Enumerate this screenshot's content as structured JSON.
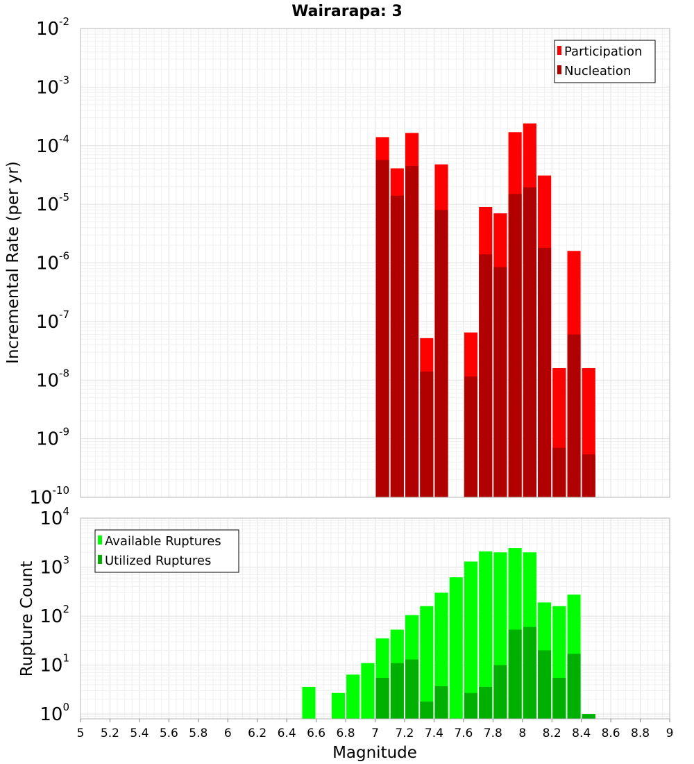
{
  "chart_data": [
    {
      "type": "bar",
      "title": "Wairarapa: 3",
      "xlabel": "",
      "ylabel": "Incremental Rate (per yr)",
      "yscale": "log",
      "xlim": [
        5,
        9
      ],
      "ylim": [
        1e-10,
        0.01
      ],
      "y_tick_labels": [
        {
          "base": "10",
          "exp": "-10"
        },
        {
          "base": "10",
          "exp": "-9"
        },
        {
          "base": "10",
          "exp": "-8"
        },
        {
          "base": "10",
          "exp": "-7"
        },
        {
          "base": "10",
          "exp": "-6"
        },
        {
          "base": "10",
          "exp": "-5"
        },
        {
          "base": "10",
          "exp": "-4"
        },
        {
          "base": "10",
          "exp": "-3"
        },
        {
          "base": "10",
          "exp": "-2"
        }
      ],
      "bar_width": 0.09,
      "grid": true,
      "legend_position": "top-right",
      "series": [
        {
          "name": "Participation",
          "color": "#ff0000",
          "x": [
            7.05,
            7.15,
            7.25,
            7.35,
            7.45,
            7.65,
            7.75,
            7.85,
            7.95,
            8.05,
            8.15,
            8.25,
            8.35,
            8.45
          ],
          "values": [
            0.00014,
            4.1e-05,
            0.000165,
            5.2e-08,
            4.8e-05,
            6.5e-08,
            9e-06,
            7e-06,
            0.00017,
            0.00024,
            3.1e-05,
            1.6e-08,
            1.6e-06,
            1.6e-08
          ]
        },
        {
          "name": "Nucleation",
          "color": "#b00000",
          "x": [
            7.05,
            7.15,
            7.25,
            7.35,
            7.45,
            7.65,
            7.75,
            7.85,
            7.95,
            8.05,
            8.15,
            8.25,
            8.35,
            8.45
          ],
          "values": [
            5.7e-05,
            1.4e-05,
            4.5e-05,
            1.4e-08,
            8e-06,
            1.15e-08,
            1.4e-06,
            8.5e-07,
            1.5e-05,
            1.95e-05,
            1.8e-06,
            7e-10,
            6e-08,
            5.4e-10
          ]
        }
      ]
    },
    {
      "type": "bar",
      "title": "",
      "xlabel": "Magnitude",
      "ylabel": "Rupture Count",
      "yscale": "log",
      "xlim": [
        5,
        9
      ],
      "ylim": [
        0.8,
        10000
      ],
      "x_tick_labels": [
        "5",
        "5.2",
        "5.4",
        "5.6",
        "5.8",
        "6",
        "6.2",
        "6.4",
        "6.6",
        "6.8",
        "7",
        "7.2",
        "7.4",
        "7.6",
        "7.8",
        "8",
        "8.2",
        "8.4",
        "8.6",
        "8.8",
        "9"
      ],
      "y_tick_labels": [
        {
          "base": "10",
          "exp": "0"
        },
        {
          "base": "10",
          "exp": "1"
        },
        {
          "base": "10",
          "exp": "2"
        },
        {
          "base": "10",
          "exp": "3"
        },
        {
          "base": "10",
          "exp": "4"
        }
      ],
      "bar_width": 0.09,
      "grid": true,
      "legend_position": "top-left",
      "series": [
        {
          "name": "Available Ruptures",
          "color": "#00ff00",
          "x": [
            6.55,
            6.75,
            6.85,
            6.95,
            7.05,
            7.15,
            7.25,
            7.35,
            7.45,
            7.55,
            7.65,
            7.75,
            7.85,
            7.95,
            8.05,
            8.15,
            8.25,
            8.35,
            8.45
          ],
          "values": [
            3.6,
            2.7,
            6.4,
            11,
            35,
            53,
            105,
            160,
            300,
            620,
            1300,
            2100,
            2000,
            2450,
            2000,
            190,
            160,
            275,
            1
          ]
        },
        {
          "name": "Utilized Ruptures",
          "color": "#00b000",
          "x": [
            7.05,
            7.15,
            7.25,
            7.35,
            7.45,
            7.65,
            7.75,
            7.85,
            7.95,
            8.05,
            8.15,
            8.25,
            8.35,
            8.45
          ],
          "values": [
            5.5,
            11,
            13,
            1.8,
            3.7,
            2.7,
            3.6,
            10,
            53,
            60,
            20,
            5.5,
            17,
            1
          ]
        }
      ]
    }
  ]
}
